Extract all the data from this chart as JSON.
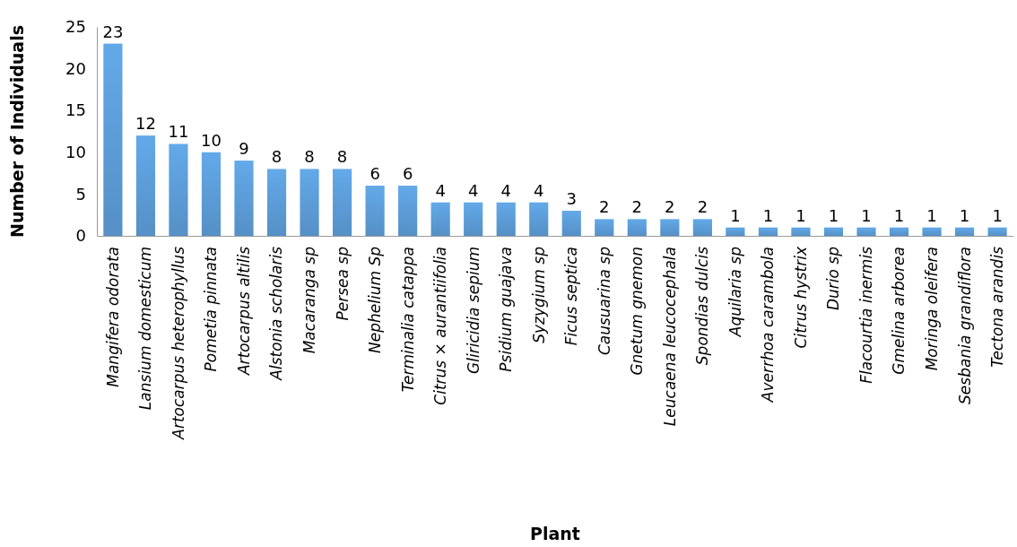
{
  "chart_data": {
    "type": "bar",
    "xlabel": "Plant",
    "ylabel": "Number of Individuals",
    "categories": [
      "Mangifera odorata",
      "Lansium domesticum",
      "Artocarpus heterophyllus",
      "Pometia pinnata",
      "Artocarpus altilis",
      "Alstonia scholaris",
      "Macaranga sp",
      "Persea sp",
      "Nephelium Sp",
      "Terminalia catappa",
      "Citrus × aurantiifolia",
      "Gliricidia sepium",
      "Psidium guajava",
      "Syzygium sp",
      "Ficus septica",
      "Causuarina sp",
      "Gnetum gnemon",
      "Leucaena leucocephala",
      "Spondias dulcis",
      "Aquilaria sp",
      "Averrhoa carambola",
      "Citrus hystrix",
      "Durio sp",
      "Flacourtia inermis",
      "Gmelina arborea",
      "Moringa oleifera",
      "Sesbania grandiflora",
      "Tectona arandis"
    ],
    "values": [
      23,
      12,
      11,
      10,
      9,
      8,
      8,
      8,
      6,
      6,
      4,
      4,
      4,
      4,
      3,
      2,
      2,
      2,
      2,
      1,
      1,
      1,
      1,
      1,
      1,
      1,
      1,
      1
    ],
    "color": "#5b9bd5",
    "ylim": [
      0,
      25
    ],
    "yticks": [
      0,
      5,
      10,
      15,
      20,
      25
    ],
    "data_labels": true
  }
}
